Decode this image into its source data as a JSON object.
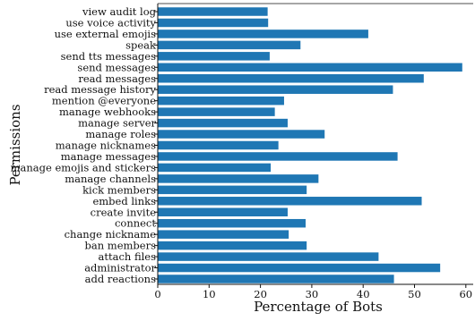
{
  "chart_data": {
    "type": "bar",
    "orientation": "horizontal",
    "xlabel": "Percentage of Bots",
    "ylabel": "Permissions",
    "xlim": [
      0,
      60
    ],
    "xticks": [
      "0",
      "10",
      "20",
      "30",
      "40",
      "50",
      "60"
    ],
    "grid": false,
    "bar_color": "#1f77b4",
    "categories": [
      "view audit log",
      "use voice activity",
      "use external emojis",
      "speak",
      "send tts messages",
      "send messages",
      "read messages",
      "read message history",
      "mention @everyone",
      "manage webhooks",
      "manage server",
      "manage roles",
      "manage nicknames",
      "manage messages",
      "manage emojis and stickers",
      "manage channels",
      "kick members",
      "embed links",
      "create invite",
      "connect",
      "change nickname",
      "ban members",
      "attach files",
      "administrator",
      "add reactions"
    ],
    "values": [
      21.4,
      21.5,
      41.0,
      27.8,
      21.8,
      59.3,
      51.8,
      45.8,
      24.6,
      22.8,
      25.3,
      32.5,
      23.5,
      46.7,
      22.0,
      31.3,
      29.0,
      51.4,
      25.3,
      28.8,
      25.5,
      29.0,
      43.0,
      55.0,
      46.0
    ]
  }
}
